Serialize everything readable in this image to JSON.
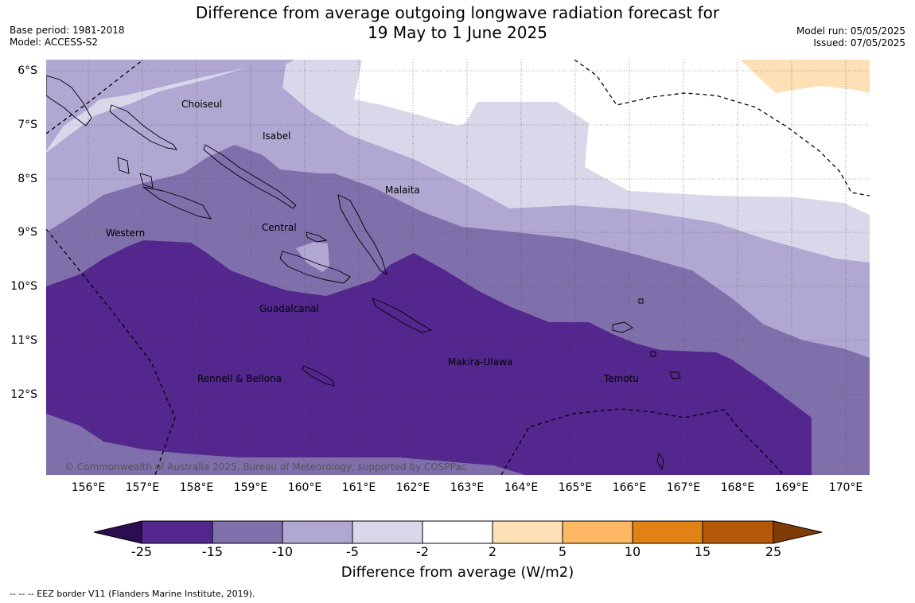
{
  "title": {
    "line1": "Difference from average outgoing longwave radiation forecast for",
    "line2": "19 May to 1 June 2025"
  },
  "meta_left": {
    "base_period": "Base period: 1981-2018",
    "model": "Model: ACCESS-S2"
  },
  "meta_right": {
    "model_run": "Model run: 05/05/2025",
    "issued": "Issued: 07/05/2025"
  },
  "map": {
    "latitude_labels": [
      "6°S",
      "7°S",
      "8°S",
      "9°S",
      "10°S",
      "11°S",
      "12°S"
    ],
    "longitude_labels": [
      "156°E",
      "157°E",
      "158°E",
      "159°E",
      "160°E",
      "161°E",
      "162°E",
      "163°E",
      "164°E",
      "165°E",
      "166°E",
      "167°E",
      "168°E",
      "169°E",
      "170°E"
    ],
    "places": {
      "choiseul": "Choiseul",
      "isabel": "Isabel",
      "malaita": "Malaita",
      "central": "Central",
      "western": "Western",
      "guadalcanal": "Guadalcanal",
      "makira_ulawa": "Makira-Ulawa",
      "temotu": "Temotu",
      "rennell_bellona": "Rennell & Bellona"
    },
    "copyright": "© Commonwealth of Australia 2025, Bureau of Meteorology, supported by COSPPac",
    "gridlines": true,
    "grid_line_style": "dotted"
  },
  "colorbar": {
    "title": "Difference from average (W/m2)",
    "tick_labels": [
      "-25",
      "-15",
      "-10",
      "-5",
      "-2",
      "2",
      "5",
      "10",
      "15",
      "25"
    ],
    "colors": {
      "below_-25": "#2d0c52",
      "-25_to_-15": "#54278f",
      "-15_to_-10": "#7f6fab",
      "-10_to_-5": "#b0a7d2",
      "-5_to_-2": "#d8d8ea",
      "-2_to_2": "#ffffff",
      "2_to_5": "#fee0b6",
      "5_to_10": "#fdb863",
      "10_to_15": "#e08214",
      "15_to_25": "#b35806",
      "above_25": "#7f3b08"
    }
  },
  "legend_note": "--  --  -- EEZ border V11 (Flanders Marine Institute, 2019)."
}
